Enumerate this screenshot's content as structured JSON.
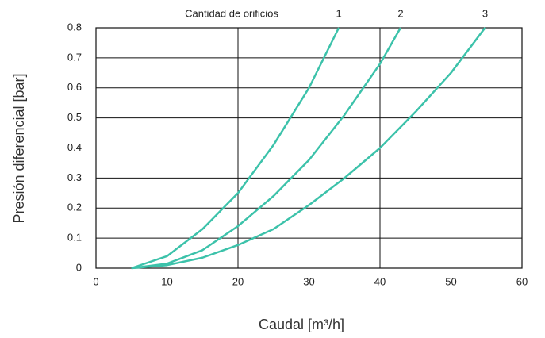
{
  "chart_data": {
    "type": "line",
    "annotation": "Cantidad de orificios",
    "xlabel": "Caudal [m³/h]",
    "ylabel": "Presión diferencial [bar]",
    "xlim": [
      0,
      60
    ],
    "xticks": [
      0,
      10,
      20,
      30,
      40,
      50,
      60
    ],
    "ylim": [
      0,
      0.8
    ],
    "yticks": [
      0,
      0.1,
      0.2,
      0.3,
      0.4,
      0.5,
      0.6,
      0.7,
      0.8
    ],
    "grid": true,
    "series": [
      {
        "name": "1",
        "color": "#3cc2aa",
        "x": [
          5,
          10,
          15,
          20,
          25,
          30,
          34.2
        ],
        "values": [
          0,
          0.04,
          0.13,
          0.25,
          0.41,
          0.6,
          0.8
        ]
      },
      {
        "name": "2",
        "color": "#3cc2aa",
        "x": [
          5,
          10,
          15,
          20,
          25,
          30,
          35,
          40,
          42.9
        ],
        "values": [
          0,
          0.015,
          0.06,
          0.14,
          0.24,
          0.36,
          0.51,
          0.68,
          0.8
        ]
      },
      {
        "name": "3",
        "color": "#3cc2aa",
        "x": [
          5,
          10,
          15,
          20,
          25,
          30,
          35,
          40,
          45,
          50,
          54.8
        ],
        "values": [
          0,
          0.01,
          0.035,
          0.077,
          0.13,
          0.21,
          0.3,
          0.4,
          0.52,
          0.65,
          0.8
        ]
      }
    ]
  }
}
